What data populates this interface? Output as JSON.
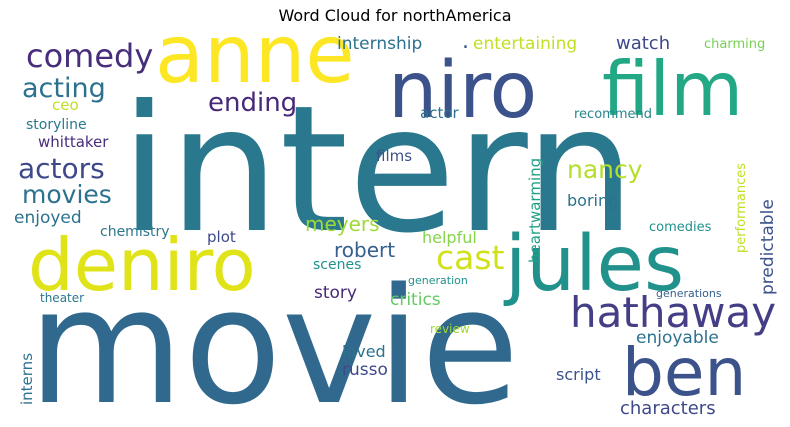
{
  "chart_data": {
    "type": "wordcloud",
    "title": "Word Cloud for northAmerica",
    "words": [
      {
        "text": "intern",
        "color": "#2a788e"
      },
      {
        "text": "movie",
        "color": "#31688e"
      },
      {
        "text": "anne",
        "color": "#fde725"
      },
      {
        "text": "niro",
        "color": "#3b528b"
      },
      {
        "text": "film",
        "color": "#22a884"
      },
      {
        "text": "deniro",
        "color": "#e1e319"
      },
      {
        "text": "jules",
        "color": "#21918c"
      },
      {
        "text": "comedy",
        "color": "#472d7b"
      },
      {
        "text": "ben",
        "color": "#3b528b"
      },
      {
        "text": "hathaway",
        "color": "#433e85"
      },
      {
        "text": "acting",
        "color": "#2c728e"
      },
      {
        "text": "ending",
        "color": "#482878"
      },
      {
        "text": "actors",
        "color": "#3e4989"
      },
      {
        "text": "movies",
        "color": "#2c728e"
      },
      {
        "text": "cast",
        "color": "#d0e11c"
      },
      {
        "text": "nancy",
        "color": "#b5de2b"
      },
      {
        "text": "robert",
        "color": "#355f8d"
      },
      {
        "text": "meyers",
        "color": "#a0da39"
      },
      {
        "text": "internship",
        "color": "#2c728e"
      },
      {
        "text": "entertaining",
        "color": "#c2df23"
      },
      {
        "text": "watch",
        "color": "#3e4989"
      },
      {
        "text": "charming",
        "color": "#75d054"
      },
      {
        "text": "ceo",
        "color": "#c2df23"
      },
      {
        "text": "storyline",
        "color": "#2a788e"
      },
      {
        "text": "whittaker",
        "color": "#472d7b"
      },
      {
        "text": "enjoyed",
        "color": "#2c728e"
      },
      {
        "text": "chemistry",
        "color": "#2a788e"
      },
      {
        "text": "plot",
        "color": "#3e4989"
      },
      {
        "text": "actor",
        "color": "#2c728e"
      },
      {
        "text": "recommend",
        "color": "#25858e"
      },
      {
        "text": "films",
        "color": "#3b528b"
      },
      {
        "text": "heartwarming",
        "color": "#1fa187"
      },
      {
        "text": "boring",
        "color": "#2c728e"
      },
      {
        "text": "performances",
        "color": "#c2df23"
      },
      {
        "text": "predictable",
        "color": "#3b528b"
      },
      {
        "text": "comedies",
        "color": "#21918c"
      },
      {
        "text": "helpful",
        "color": "#86d549"
      },
      {
        "text": "scenes",
        "color": "#21918c"
      },
      {
        "text": "story",
        "color": "#482878"
      },
      {
        "text": "critics",
        "color": "#60ca60"
      },
      {
        "text": "generation",
        "color": "#21918c"
      },
      {
        "text": "generations",
        "color": "#355f8d"
      },
      {
        "text": "theater",
        "color": "#2a788e"
      },
      {
        "text": "review",
        "color": "#a0da39"
      },
      {
        "text": "enjoyable",
        "color": "#2c728e"
      },
      {
        "text": "interns",
        "color": "#2c728e"
      },
      {
        "text": "loved",
        "color": "#2c728e"
      },
      {
        "text": "russo",
        "color": "#3e4989"
      },
      {
        "text": "script",
        "color": "#3b528b"
      },
      {
        "text": "characters",
        "color": "#3e4989"
      },
      {
        "text": ".",
        "color": "#3b528b"
      }
    ]
  }
}
